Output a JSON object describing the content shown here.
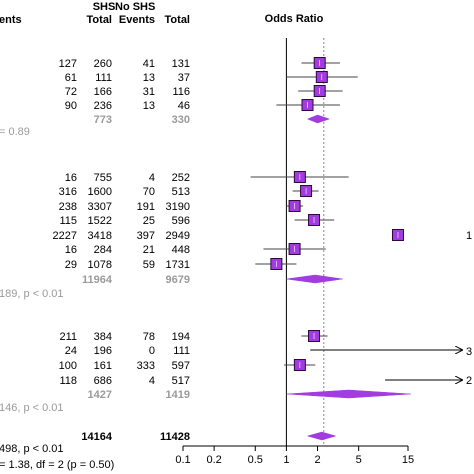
{
  "header": {
    "group1": "SHS",
    "group2": "No SHS",
    "col_events_1": "Events",
    "col_total_1": "Total",
    "col_events_2": "Events",
    "col_total_2": "Total",
    "axis_title": "Odds Ratio"
  },
  "left_fragments": {
    "events_head": "ents",
    "het1": "= 0.89",
    "het2": "189, p < 0.01",
    "het3": "146, p < 0.01",
    "overall_test": "498, p < 0.01",
    "subgroup_test": "= 1.38, df = 2 (p = 0.50)"
  },
  "right_fragments": {
    "row_a": "1",
    "row_b": "3",
    "row_c": "2"
  },
  "chart_data": {
    "type": "forest",
    "x_axis": {
      "label": "Odds Ratio",
      "scale": "log",
      "ticks": [
        0.1,
        0.2,
        0.5,
        1,
        2,
        5,
        15
      ],
      "tick_labels": [
        "0.1",
        "0.2",
        "0.5",
        "1",
        "2",
        "5",
        "15"
      ],
      "range": [
        0.1,
        15
      ],
      "reference_line": 1,
      "pooled_line": 2.3
    },
    "rows": [
      {
        "kind": "study",
        "e1": "127",
        "t1": "260",
        "e2": "41",
        "t2": "131",
        "or": 2.1,
        "lo": 1.4,
        "hi": 3.3
      },
      {
        "kind": "study",
        "e1": "61",
        "t1": "111",
        "e2": "13",
        "t2": "37",
        "or": 2.2,
        "lo": 1.0,
        "hi": 4.9
      },
      {
        "kind": "study",
        "e1": "72",
        "t1": "166",
        "e2": "31",
        "t2": "116",
        "or": 2.1,
        "lo": 1.3,
        "hi": 3.5
      },
      {
        "kind": "study",
        "e1": "90",
        "t1": "236",
        "e2": "13",
        "t2": "46",
        "or": 1.6,
        "lo": 0.8,
        "hi": 3.3
      },
      {
        "kind": "pooled",
        "t1": "773",
        "t2": "330",
        "or": 2.0,
        "lo": 1.6,
        "hi": 2.6
      },
      {
        "kind": "study",
        "e1": "16",
        "t1": "755",
        "e2": "4",
        "t2": "252",
        "or": 1.35,
        "lo": 0.45,
        "hi": 4.0
      },
      {
        "kind": "study",
        "e1": "316",
        "t1": "1600",
        "e2": "70",
        "t2": "513",
        "or": 1.55,
        "lo": 1.15,
        "hi": 2.05
      },
      {
        "kind": "study",
        "e1": "238",
        "t1": "3307",
        "e2": "191",
        "t2": "3190",
        "or": 1.2,
        "lo": 1.0,
        "hi": 1.45
      },
      {
        "kind": "study",
        "e1": "115",
        "t1": "1522",
        "e2": "25",
        "t2": "596",
        "or": 1.85,
        "lo": 1.2,
        "hi": 2.9
      },
      {
        "kind": "study",
        "e1": "2227",
        "t1": "3418",
        "e2": "397",
        "t2": "2949",
        "or": 12,
        "lo": 10.5,
        "hi": 13.5
      },
      {
        "kind": "study",
        "e1": "16",
        "t1": "284",
        "e2": "21",
        "t2": "448",
        "or": 1.2,
        "lo": 0.6,
        "hi": 2.4
      },
      {
        "kind": "study",
        "e1": "29",
        "t1": "1078",
        "e2": "59",
        "t2": "1731",
        "or": 0.8,
        "lo": 0.5,
        "hi": 1.25
      },
      {
        "kind": "pooled",
        "t1": "11964",
        "t2": "9679",
        "or": 1.9,
        "lo": 1.0,
        "hi": 3.5
      },
      {
        "kind": "study",
        "e1": "211",
        "t1": "384",
        "e2": "78",
        "t2": "194",
        "or": 1.85,
        "lo": 1.4,
        "hi": 2.5
      },
      {
        "kind": "study",
        "e1": "24",
        "t1": "196",
        "e2": "0",
        "t2": "111",
        "or": 45,
        "lo": 1.7,
        "hi": 200,
        "arrow": true
      },
      {
        "kind": "study",
        "e1": "100",
        "t1": "161",
        "e2": "333",
        "t2": "597",
        "or": 1.35,
        "lo": 0.95,
        "hi": 1.9
      },
      {
        "kind": "study",
        "e1": "118",
        "t1": "686",
        "e2": "4",
        "t2": "517",
        "or": 30,
        "lo": 9,
        "hi": 120,
        "arrow": true
      },
      {
        "kind": "pooled",
        "t1": "1427",
        "t2": "1419",
        "or": 4.0,
        "lo": 1.0,
        "hi": 16
      },
      {
        "kind": "overall",
        "t1": "14164",
        "t2": "11428",
        "or": 2.2,
        "lo": 1.6,
        "hi": 3.0
      }
    ]
  }
}
